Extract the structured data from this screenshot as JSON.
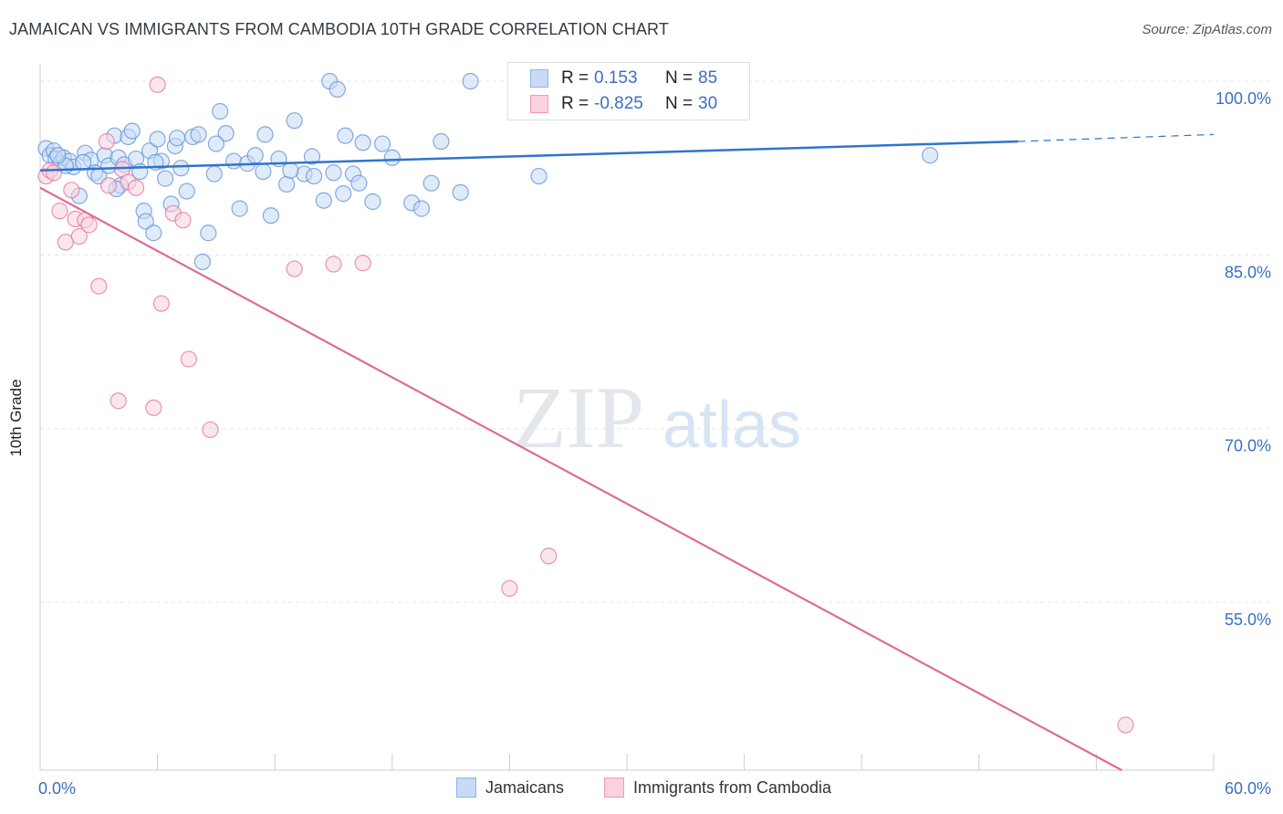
{
  "header": {
    "title": "JAMAICAN VS IMMIGRANTS FROM CAMBODIA 10TH GRADE CORRELATION CHART",
    "source": "Source: ZipAtlas.com"
  },
  "watermark": {
    "zip": "ZIP",
    "atlas": "atlas"
  },
  "legend": {
    "r_label": "R =",
    "n_label": "N =",
    "entries": [
      {
        "r": "0.153",
        "n": "85",
        "color": "#8fb5ea",
        "fill": "#c7dbf5"
      },
      {
        "r": "-0.825",
        "n": "30",
        "color": "#ef9ab7",
        "fill": "#fad1de"
      }
    ]
  },
  "bottom_legend": [
    "Jamaicans",
    "Immigrants from Cambodia"
  ],
  "chart_data": {
    "type": "scatter",
    "title": "JAMAICAN VS IMMIGRANTS FROM CAMBODIA 10TH GRADE CORRELATION CHART",
    "xlabel": "",
    "ylabel": "10th Grade",
    "xlim": [
      0,
      60
    ],
    "ylim": [
      40.5,
      101.5
    ],
    "x_tick_labels": [
      "0.0%",
      "60.0%"
    ],
    "y_ticks": [
      100,
      85,
      70,
      55
    ],
    "y_tick_labels": [
      "100.0%",
      "85.0%",
      "70.0%",
      "55.0%"
    ],
    "grid": true,
    "legend_position": "top-center",
    "series": [
      {
        "name": "Jamaicans",
        "color": "#5b8fd6",
        "fill": "#c7dbf5",
        "trend": {
          "x": [
            0,
            50
          ],
          "y": [
            92.3,
            94.8
          ],
          "dashed_to_x": 60,
          "dashed_y": 95.4
        },
        "points": [
          [
            0.3,
            94.2
          ],
          [
            0.5,
            93.6
          ],
          [
            0.7,
            94.0
          ],
          [
            0.8,
            93.3
          ],
          [
            1.0,
            92.9
          ],
          [
            1.2,
            93.4
          ],
          [
            1.5,
            93.1
          ],
          [
            1.7,
            92.6
          ],
          [
            2.0,
            90.1
          ],
          [
            2.3,
            93.8
          ],
          [
            2.6,
            93.2
          ],
          [
            2.8,
            92.1
          ],
          [
            3.0,
            91.8
          ],
          [
            3.3,
            93.6
          ],
          [
            3.5,
            92.7
          ],
          [
            3.8,
            95.3
          ],
          [
            4.0,
            93.4
          ],
          [
            4.3,
            92.8
          ],
          [
            4.5,
            95.2
          ],
          [
            4.7,
            95.7
          ],
          [
            4.9,
            93.3
          ],
          [
            5.1,
            92.2
          ],
          [
            5.3,
            88.8
          ],
          [
            5.4,
            87.9
          ],
          [
            5.6,
            94.0
          ],
          [
            5.8,
            86.9
          ],
          [
            6.0,
            95.0
          ],
          [
            6.2,
            93.1
          ],
          [
            6.4,
            91.6
          ],
          [
            6.7,
            89.4
          ],
          [
            6.9,
            94.4
          ],
          [
            7.2,
            92.5
          ],
          [
            7.5,
            90.5
          ],
          [
            7.8,
            95.2
          ],
          [
            8.1,
            95.4
          ],
          [
            8.3,
            84.4
          ],
          [
            8.6,
            86.9
          ],
          [
            8.9,
            92.0
          ],
          [
            9.2,
            97.4
          ],
          [
            9.5,
            95.5
          ],
          [
            9.9,
            93.1
          ],
          [
            10.2,
            89.0
          ],
          [
            10.6,
            92.9
          ],
          [
            11.0,
            93.6
          ],
          [
            11.4,
            92.2
          ],
          [
            11.8,
            88.4
          ],
          [
            12.2,
            93.3
          ],
          [
            12.6,
            91.1
          ],
          [
            13.0,
            96.6
          ],
          [
            13.5,
            92.0
          ],
          [
            14.0,
            91.8
          ],
          [
            14.5,
            89.7
          ],
          [
            15.0,
            92.1
          ],
          [
            15.5,
            90.3
          ],
          [
            16.0,
            92.0
          ],
          [
            16.5,
            94.7
          ],
          [
            17.0,
            89.6
          ],
          [
            17.5,
            94.6
          ],
          [
            18.0,
            93.4
          ],
          [
            19.0,
            89.5
          ],
          [
            20.0,
            91.2
          ],
          [
            20.5,
            94.8
          ],
          [
            21.5,
            90.4
          ],
          [
            22.0,
            100.0
          ],
          [
            25.5,
            91.8
          ],
          [
            27.0,
            100.0
          ],
          [
            30.5,
            100.0
          ],
          [
            35.0,
            100.0
          ],
          [
            45.5,
            93.6
          ],
          [
            14.8,
            100.0
          ],
          [
            15.2,
            99.3
          ],
          [
            15.6,
            95.3
          ],
          [
            13.9,
            93.5
          ],
          [
            11.5,
            95.4
          ],
          [
            12.8,
            92.3
          ],
          [
            7.0,
            95.1
          ],
          [
            4.1,
            91.0
          ],
          [
            5.9,
            93.0
          ],
          [
            9.0,
            94.6
          ],
          [
            3.9,
            90.7
          ],
          [
            2.2,
            93.0
          ],
          [
            1.3,
            92.7
          ],
          [
            0.9,
            93.6
          ],
          [
            16.3,
            91.2
          ],
          [
            19.5,
            89.0
          ]
        ]
      },
      {
        "name": "Immigrants from Cambodia",
        "color": "#e0729a",
        "fill": "#fad1de",
        "trend": {
          "x": [
            0,
            55.3
          ],
          "y": [
            90.8,
            40.5
          ]
        },
        "points": [
          [
            0.3,
            91.8
          ],
          [
            0.5,
            92.3
          ],
          [
            0.7,
            92.1
          ],
          [
            1.0,
            88.8
          ],
          [
            1.3,
            86.1
          ],
          [
            1.6,
            90.6
          ],
          [
            1.8,
            88.1
          ],
          [
            2.0,
            86.6
          ],
          [
            2.3,
            88.0
          ],
          [
            2.5,
            87.6
          ],
          [
            3.0,
            82.3
          ],
          [
            3.4,
            94.8
          ],
          [
            3.5,
            91.0
          ],
          [
            4.0,
            72.4
          ],
          [
            4.2,
            92.4
          ],
          [
            4.5,
            91.3
          ],
          [
            4.9,
            90.8
          ],
          [
            5.8,
            71.8
          ],
          [
            6.0,
            99.7
          ],
          [
            6.2,
            80.8
          ],
          [
            6.8,
            88.6
          ],
          [
            7.3,
            88.0
          ],
          [
            7.6,
            76.0
          ],
          [
            8.7,
            69.9
          ],
          [
            13.0,
            83.8
          ],
          [
            15.0,
            84.2
          ],
          [
            16.5,
            84.3
          ],
          [
            24.0,
            56.2
          ],
          [
            26.0,
            59.0
          ],
          [
            55.5,
            44.4
          ]
        ]
      }
    ]
  }
}
